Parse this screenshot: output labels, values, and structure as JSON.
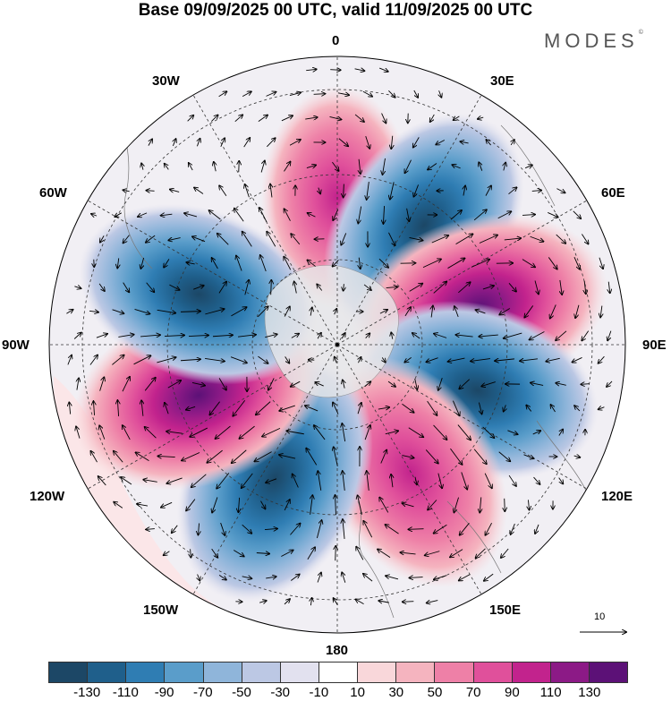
{
  "header": {
    "title": "Base 09/09/2025 00 UTC, valid 11/09/2025 00 UTC",
    "logo": "MODES",
    "logo_mark": "©"
  },
  "map": {
    "projection": "polar stereographic (south pole)",
    "longitude_labels": {
      "lon_0": "0",
      "lon_30e": "30E",
      "lon_60e": "60E",
      "lon_90e": "90E",
      "lon_120e": "120E",
      "lon_150e": "150E",
      "lon_180": "180",
      "lon_150w": "150W",
      "lon_120w": "120W",
      "lon_90w": "90W",
      "lon_60w": "60W",
      "lon_30w": "30W"
    },
    "anomaly_centers": [
      {
        "lon_deg": 0,
        "sign": "positive",
        "peak": 70
      },
      {
        "lon_deg": 36,
        "sign": "negative",
        "peak": -110
      },
      {
        "lon_deg": 75,
        "sign": "positive",
        "peak": 130
      },
      {
        "lon_deg": 108,
        "sign": "negative",
        "peak": -110
      },
      {
        "lon_deg": 150,
        "sign": "positive",
        "peak": 110
      },
      {
        "lon_deg": 205,
        "sign": "negative",
        "peak": -130
      },
      {
        "lon_deg": 250,
        "sign": "positive",
        "peak": 130
      },
      {
        "lon_deg": 290,
        "sign": "negative",
        "peak": -110
      }
    ],
    "reference_vector_label": "10"
  },
  "colorbar": {
    "colors": [
      "#1c4766",
      "#1f5f8b",
      "#2f7db3",
      "#5a9dca",
      "#8fb5da",
      "#bcc8e4",
      "#e2e1ef",
      "#ffffff",
      "#f9d7da",
      "#f5b4bf",
      "#ee80a7",
      "#e0509b",
      "#c2238d",
      "#8c1a86",
      "#5c1177"
    ],
    "tick_labels": [
      "-130",
      "-110",
      "-90",
      "-70",
      "-50",
      "-30",
      "-10",
      "10",
      "30",
      "50",
      "70",
      "90",
      "110",
      "130"
    ]
  }
}
